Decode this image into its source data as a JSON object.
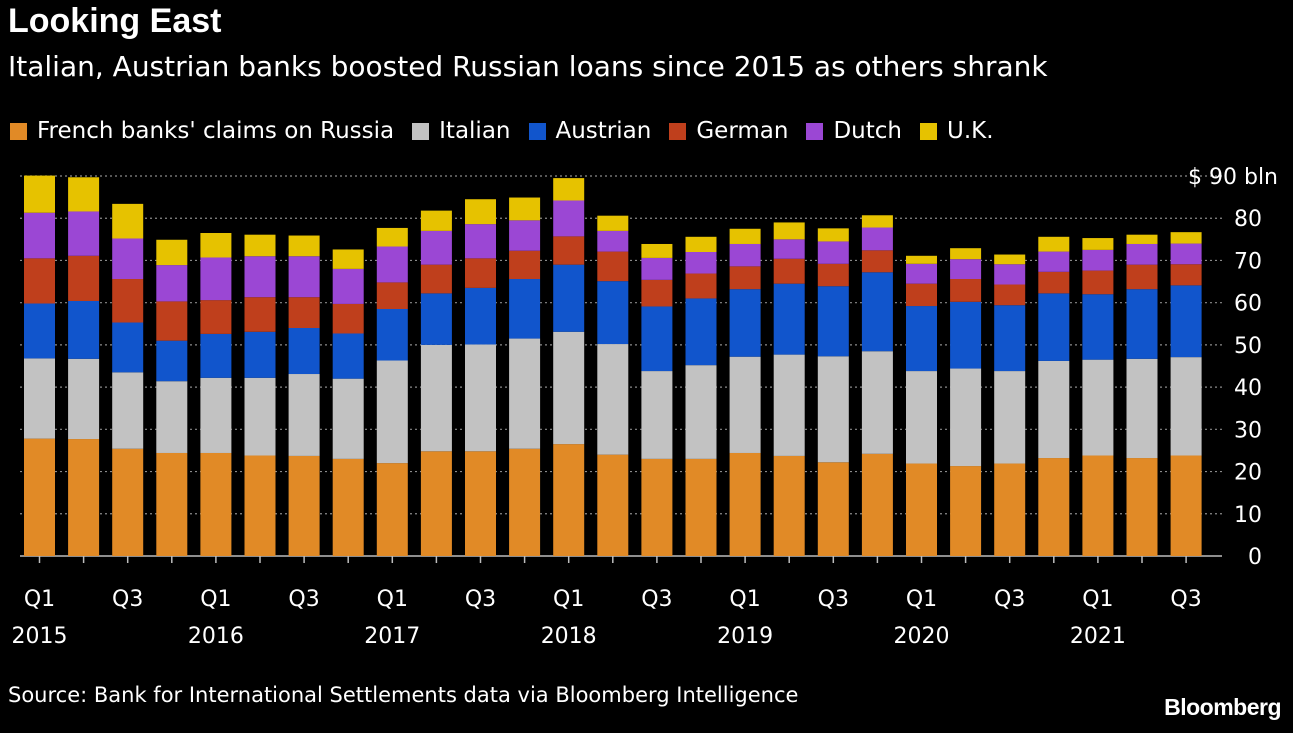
{
  "header": {
    "title": "Looking East",
    "subtitle": "Italian, Austrian banks boosted Russian loans since 2015 as others shrank"
  },
  "footer": {
    "source": "Source: Bank for International Settlements data via Bloomberg Intelligence",
    "brand": "Bloomberg"
  },
  "chart_data": {
    "type": "bar",
    "stacked": true,
    "title": "Looking East",
    "subtitle": "Italian, Austrian banks boosted Russian loans since 2015 as others shrank",
    "unit_label": "$ 90 bln",
    "ylim": [
      0,
      90
    ],
    "y_ticks": [
      0,
      10,
      20,
      30,
      40,
      50,
      60,
      70,
      80,
      90
    ],
    "y_tick_labels": [
      "0",
      "10",
      "20",
      "30",
      "40",
      "50",
      "60",
      "70",
      "80",
      "$ 90 bln"
    ],
    "grid": true,
    "legend_position": "top-left",
    "categories": [
      "Q1 2015",
      "Q2 2015",
      "Q3 2015",
      "Q4 2015",
      "Q1 2016",
      "Q2 2016",
      "Q3 2016",
      "Q4 2016",
      "Q1 2017",
      "Q2 2017",
      "Q3 2017",
      "Q4 2017",
      "Q1 2018",
      "Q2 2018",
      "Q3 2018",
      "Q4 2018",
      "Q1 2019",
      "Q2 2019",
      "Q3 2019",
      "Q4 2019",
      "Q1 2020",
      "Q2 2020",
      "Q3 2020",
      "Q4 2020",
      "Q1 2021",
      "Q2 2021",
      "Q3 2021"
    ],
    "x_tick_labels": [
      {
        "index": 0,
        "quarter": "Q1",
        "year": "2015"
      },
      {
        "index": 2,
        "quarter": "Q3",
        "year": ""
      },
      {
        "index": 4,
        "quarter": "Q1",
        "year": "2016"
      },
      {
        "index": 6,
        "quarter": "Q3",
        "year": ""
      },
      {
        "index": 8,
        "quarter": "Q1",
        "year": "2017"
      },
      {
        "index": 10,
        "quarter": "Q3",
        "year": ""
      },
      {
        "index": 12,
        "quarter": "Q1",
        "year": "2018"
      },
      {
        "index": 14,
        "quarter": "Q3",
        "year": ""
      },
      {
        "index": 16,
        "quarter": "Q1",
        "year": "2019"
      },
      {
        "index": 18,
        "quarter": "Q3",
        "year": ""
      },
      {
        "index": 20,
        "quarter": "Q1",
        "year": "2020"
      },
      {
        "index": 22,
        "quarter": "Q3",
        "year": ""
      },
      {
        "index": 24,
        "quarter": "Q1",
        "year": "2021"
      },
      {
        "index": 26,
        "quarter": "Q3",
        "year": ""
      }
    ],
    "series": [
      {
        "name": "French banks' claims on Russia",
        "color": "#e18a26",
        "values": [
          27.8,
          27.7,
          25.4,
          24.4,
          24.4,
          23.8,
          23.7,
          23.0,
          22.0,
          24.8,
          24.8,
          25.4,
          26.5,
          24.0,
          23.0,
          23.0,
          24.4,
          23.7,
          22.2,
          24.2,
          21.9,
          21.3,
          21.9,
          23.2,
          23.8,
          23.2,
          23.8
        ]
      },
      {
        "name": "Italian",
        "color": "#c2c2c2",
        "values": [
          19.0,
          19.0,
          18.1,
          17.0,
          17.8,
          18.4,
          19.4,
          19.0,
          24.3,
          25.2,
          25.3,
          26.1,
          26.6,
          26.2,
          20.8,
          22.2,
          22.8,
          24.0,
          25.1,
          24.3,
          21.9,
          23.1,
          21.9,
          23.0,
          22.7,
          23.5,
          23.3
        ]
      },
      {
        "name": "Austrian",
        "color": "#1155cc",
        "values": [
          13.0,
          13.7,
          11.8,
          9.6,
          10.4,
          10.9,
          10.9,
          10.7,
          12.2,
          12.2,
          13.4,
          14.1,
          15.9,
          14.9,
          15.3,
          15.8,
          16.0,
          16.8,
          16.6,
          18.7,
          15.4,
          15.8,
          15.6,
          16.0,
          15.5,
          16.5,
          17.0
        ]
      },
      {
        "name": "German",
        "color": "#bf3f1c",
        "values": [
          10.7,
          10.7,
          10.3,
          9.3,
          8.0,
          8.2,
          7.3,
          7.0,
          6.3,
          6.8,
          7.0,
          6.7,
          6.7,
          7.0,
          6.3,
          5.9,
          5.4,
          5.9,
          5.3,
          5.2,
          5.3,
          5.4,
          4.9,
          5.1,
          5.6,
          5.8,
          5.0
        ]
      },
      {
        "name": "Dutch",
        "color": "#9b47d4",
        "values": [
          10.8,
          10.5,
          9.6,
          8.6,
          10.1,
          9.7,
          9.7,
          8.3,
          8.5,
          8.0,
          8.1,
          7.2,
          8.5,
          4.9,
          5.2,
          5.1,
          5.3,
          4.6,
          5.3,
          5.4,
          4.7,
          4.7,
          4.8,
          4.8,
          4.9,
          4.9,
          4.9
        ]
      },
      {
        "name": "U.K.",
        "color": "#e6c200",
        "values": [
          8.8,
          8.1,
          8.2,
          6.0,
          5.8,
          5.1,
          4.9,
          4.6,
          4.4,
          4.8,
          5.9,
          5.4,
          5.3,
          3.6,
          3.3,
          3.6,
          3.6,
          4.0,
          3.1,
          2.9,
          1.9,
          2.6,
          2.3,
          3.5,
          2.8,
          2.2,
          2.7
        ]
      }
    ]
  }
}
